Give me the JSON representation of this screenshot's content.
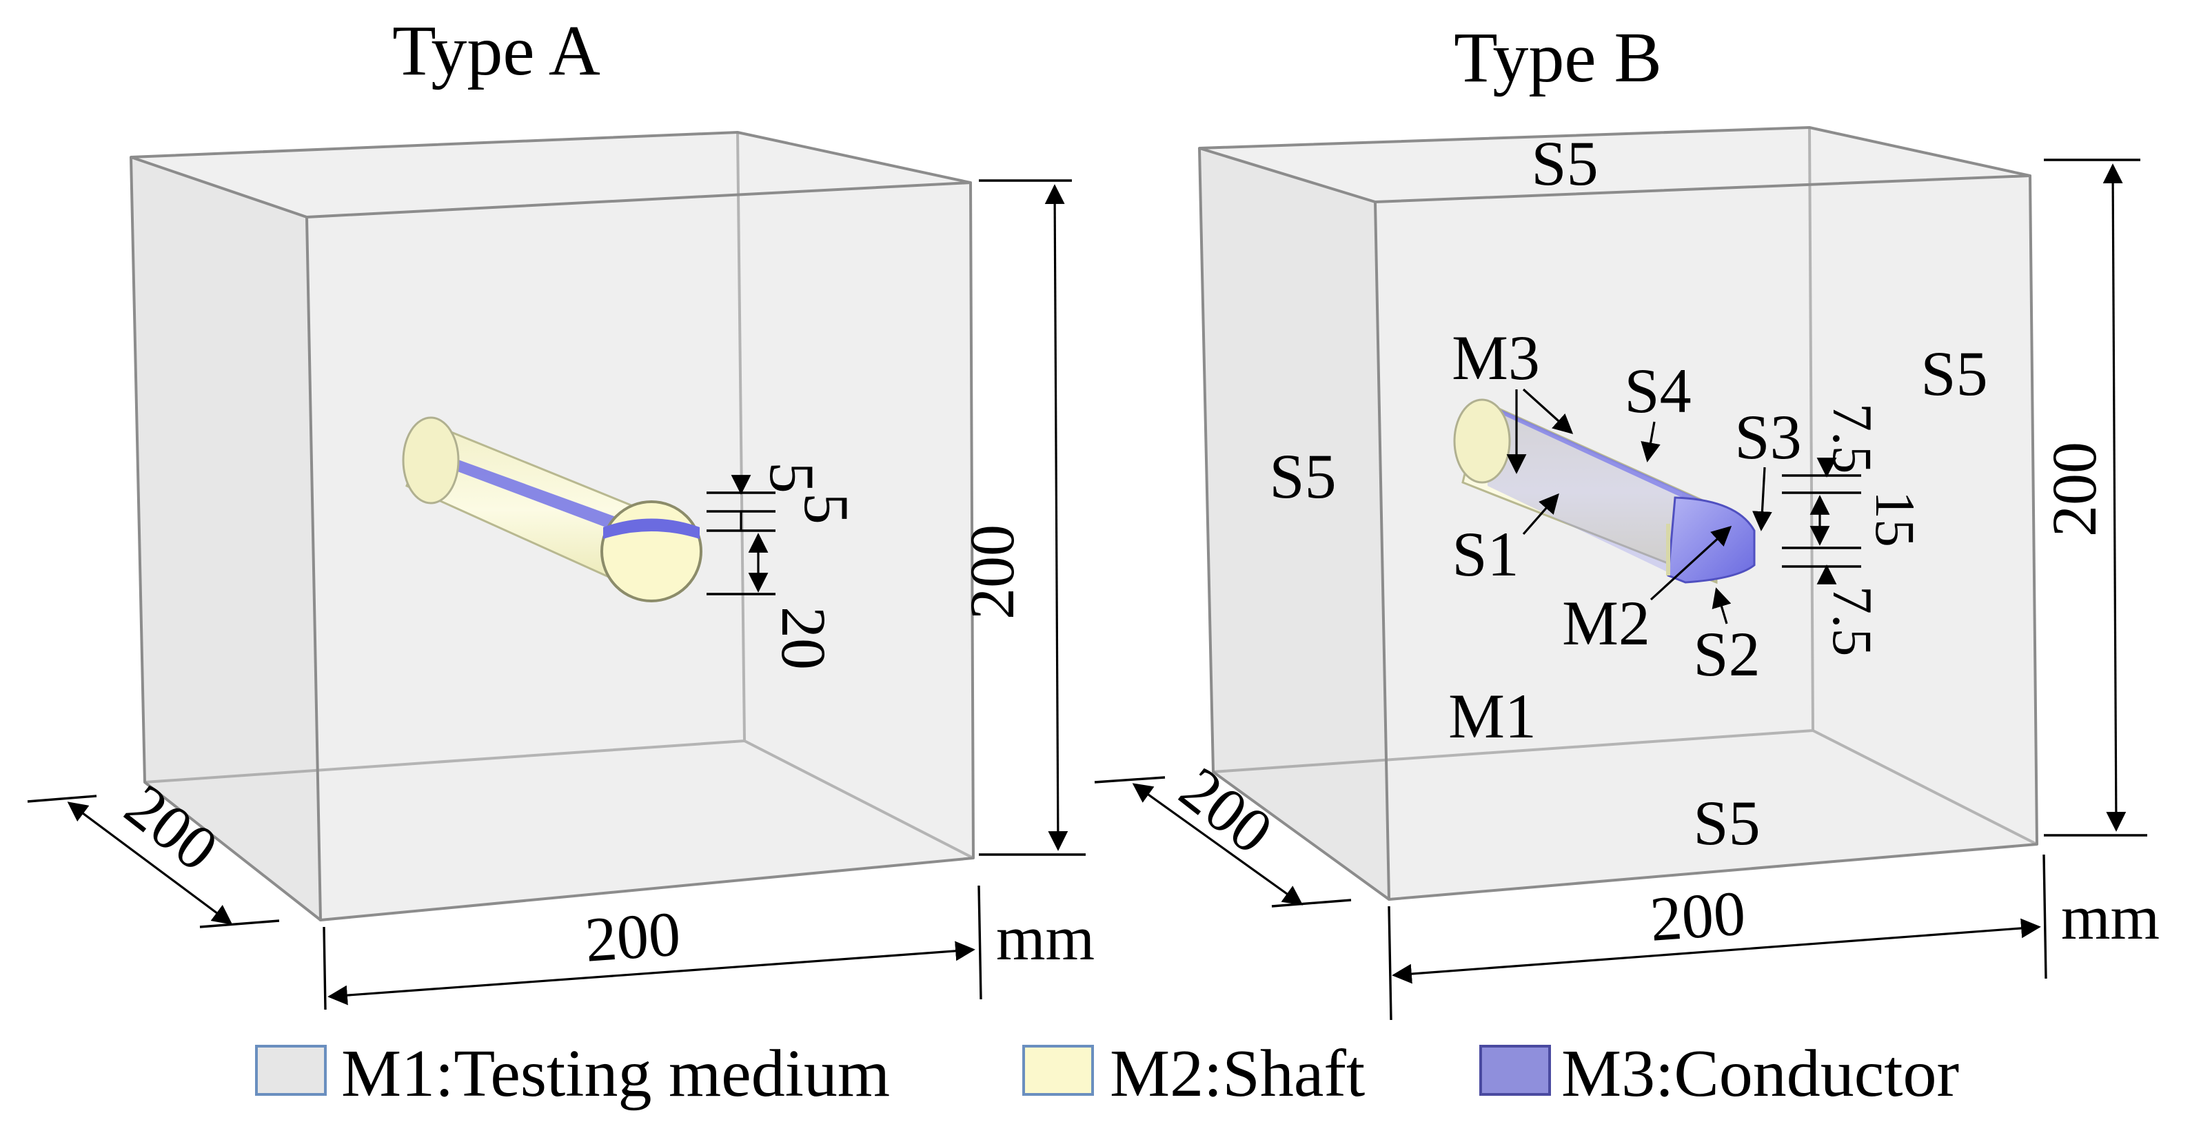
{
  "panels": {
    "a": {
      "title": "Type A",
      "dim_front": "200",
      "dim_side": "200",
      "dim_height": "200",
      "unit": "mm",
      "dim_layers": [
        "5",
        "5",
        "20"
      ]
    },
    "b": {
      "title": "Type B",
      "dim_front": "200",
      "dim_side": "200",
      "dim_height": "200",
      "unit": "mm",
      "dim_layers": [
        "7.5",
        "15",
        "7.5"
      ],
      "surface_labels": {
        "s5_top": "S5",
        "s5_left": "S5",
        "s5_right": "S5",
        "s5_bottom": "S5",
        "s4": "S4",
        "s3": "S3",
        "s2": "S2",
        "s1": "S1"
      },
      "material_labels": {
        "m1": "M1",
        "m2": "M2",
        "m3": "M3"
      }
    }
  },
  "legend": [
    {
      "label": "M1:Testing medium",
      "color": "#e6e6e6",
      "border": "#6a8fbf"
    },
    {
      "label": "M2:Shaft",
      "color": "#fbf8cc",
      "border": "#6a8fbf"
    },
    {
      "label": "M3:Conductor",
      "color": "#8f8fdc",
      "border": "#4a4aa0"
    }
  ],
  "colors": {
    "box_fill": "#ececec",
    "shaft": "#fbf8cc",
    "conductor": "#8080ea"
  }
}
